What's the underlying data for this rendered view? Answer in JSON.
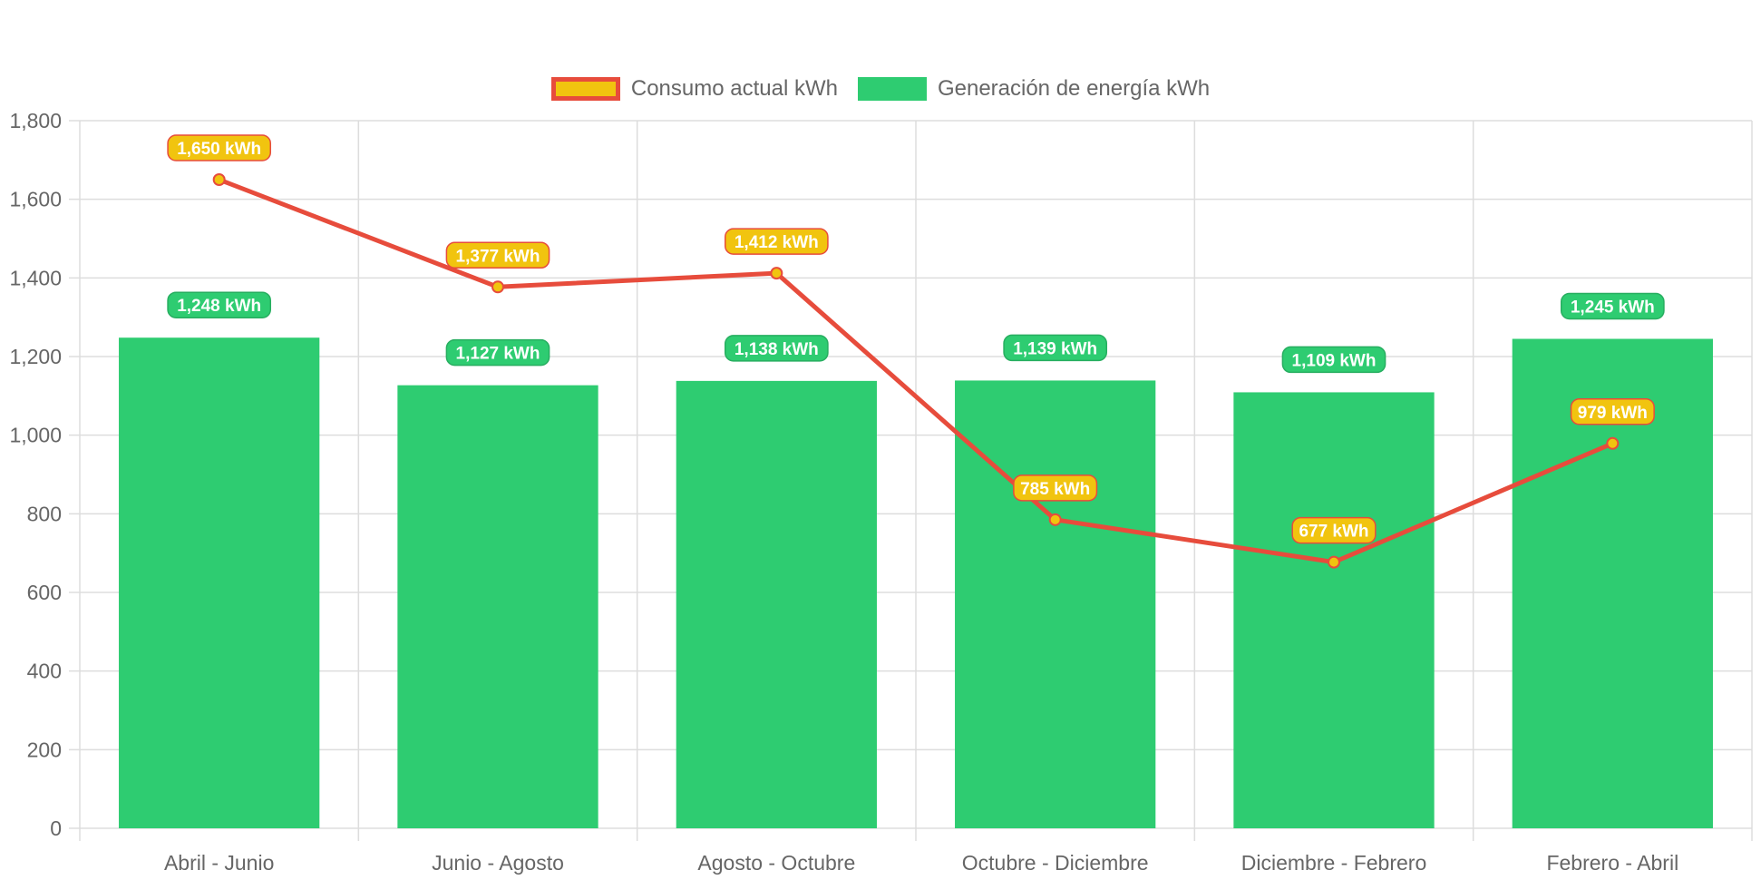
{
  "chart_data": {
    "type": "bar",
    "categories": [
      "Abril - Junio",
      "Junio - Agosto",
      "Agosto - Octubre",
      "Octubre - Diciembre",
      "Diciembre - Febrero",
      "Febrero - Abril"
    ],
    "series": [
      {
        "name": "Consumo actual kWh",
        "type": "line",
        "values": [
          1650,
          1377,
          1412,
          785,
          677,
          979
        ],
        "labels": [
          "1,650 kWh",
          "1,377 kWh",
          "1,412 kWh",
          "785 kWh",
          "677 kWh",
          "979 kWh"
        ],
        "color": "#e74c3c",
        "fill_color": "#f1c40f"
      },
      {
        "name": "Generación de energía kWh",
        "type": "bar",
        "values": [
          1248,
          1127,
          1138,
          1139,
          1109,
          1245
        ],
        "labels": [
          "1,248 kWh",
          "1,127 kWh",
          "1,138 kWh",
          "1,139 kWh",
          "1,109 kWh",
          "1,245 kWh"
        ],
        "color": "#2ecc71"
      }
    ],
    "yticks": [
      "0",
      "200",
      "400",
      "600",
      "800",
      "1,000",
      "1,200",
      "1,400",
      "1,600",
      "1,800"
    ],
    "ylim": [
      0,
      1800
    ],
    "grid": true,
    "legend_position": "top"
  },
  "legend": {
    "consumo_label": "Consumo actual kWh",
    "generacion_label": "Generación de energía kWh"
  },
  "colors": {
    "line": "#e74c3c",
    "point": "#f1c40f",
    "bar": "#2ecc71",
    "grid": "#dddddd",
    "text": "#666666"
  }
}
